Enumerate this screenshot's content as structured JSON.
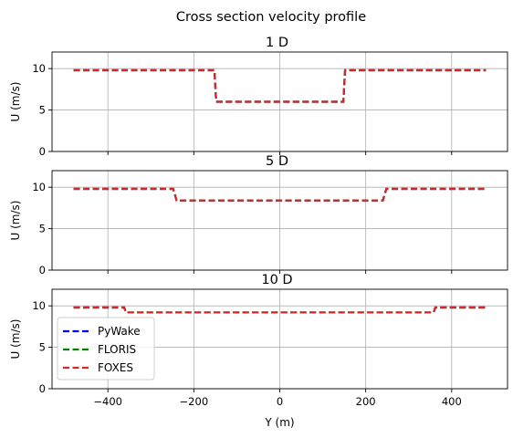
{
  "figure_title": "Cross section velocity profile",
  "colors": {
    "pywake": "#0000ff",
    "floris": "#008000",
    "foxes": "#d62728",
    "grid": "#b0b0b0"
  },
  "legend": [
    "PyWake",
    "FLORIS",
    "FOXES"
  ],
  "chart_data": [
    {
      "type": "line",
      "title": "1 D",
      "xlabel": "",
      "ylabel": "U (m/s)",
      "xlim": [
        -530,
        530
      ],
      "ylim": [
        0,
        12
      ],
      "xticks": [
        -400,
        -200,
        0,
        200,
        400
      ],
      "yticks": [
        0,
        5,
        10
      ],
      "show_xtick_labels": false,
      "grid": true,
      "legend": false,
      "series": [
        {
          "name": "PyWake",
          "x": [
            -480,
            -152,
            -148,
            148,
            152,
            480
          ],
          "y": [
            9.8,
            9.8,
            6.0,
            6.0,
            9.8,
            9.8
          ]
        },
        {
          "name": "FLORIS",
          "x": [
            -480,
            -152,
            -148,
            148,
            152,
            480
          ],
          "y": [
            9.8,
            9.8,
            6.0,
            6.0,
            9.8,
            9.8
          ]
        },
        {
          "name": "FOXES",
          "x": [
            -480,
            -152,
            -148,
            148,
            152,
            480
          ],
          "y": [
            9.8,
            9.8,
            6.0,
            6.0,
            9.8,
            9.8
          ]
        }
      ]
    },
    {
      "type": "line",
      "title": "5 D",
      "xlabel": "",
      "ylabel": "U (m/s)",
      "xlim": [
        -530,
        530
      ],
      "ylim": [
        0,
        12
      ],
      "xticks": [
        -400,
        -200,
        0,
        200,
        400
      ],
      "yticks": [
        0,
        5,
        10
      ],
      "show_xtick_labels": false,
      "grid": true,
      "legend": false,
      "series": [
        {
          "name": "PyWake",
          "x": [
            -480,
            -248,
            -240,
            240,
            248,
            480
          ],
          "y": [
            9.8,
            9.8,
            8.4,
            8.4,
            9.8,
            9.8
          ]
        },
        {
          "name": "FLORIS",
          "x": [
            -480,
            -248,
            -240,
            240,
            248,
            480
          ],
          "y": [
            9.8,
            9.8,
            8.4,
            8.4,
            9.8,
            9.8
          ]
        },
        {
          "name": "FOXES",
          "x": [
            -480,
            -248,
            -240,
            240,
            248,
            480
          ],
          "y": [
            9.8,
            9.8,
            8.4,
            8.4,
            9.8,
            9.8
          ]
        }
      ]
    },
    {
      "type": "line",
      "title": "10 D",
      "xlabel": "Y (m)",
      "ylabel": "U (m/s)",
      "xlim": [
        -530,
        530
      ],
      "ylim": [
        0,
        12
      ],
      "xticks": [
        -400,
        -200,
        0,
        200,
        400
      ],
      "yticks": [
        0,
        5,
        10
      ],
      "show_xtick_labels": true,
      "grid": true,
      "legend": true,
      "series": [
        {
          "name": "PyWake",
          "x": [
            -480,
            -362,
            -358,
            358,
            362,
            480
          ],
          "y": [
            9.8,
            9.8,
            9.2,
            9.2,
            9.8,
            9.8
          ]
        },
        {
          "name": "FLORIS",
          "x": [
            -480,
            -362,
            -358,
            358,
            362,
            480
          ],
          "y": [
            9.8,
            9.8,
            9.2,
            9.2,
            9.8,
            9.8
          ]
        },
        {
          "name": "FOXES",
          "x": [
            -480,
            -362,
            -358,
            358,
            362,
            480
          ],
          "y": [
            9.8,
            9.8,
            9.2,
            9.2,
            9.8,
            9.8
          ]
        }
      ]
    }
  ]
}
